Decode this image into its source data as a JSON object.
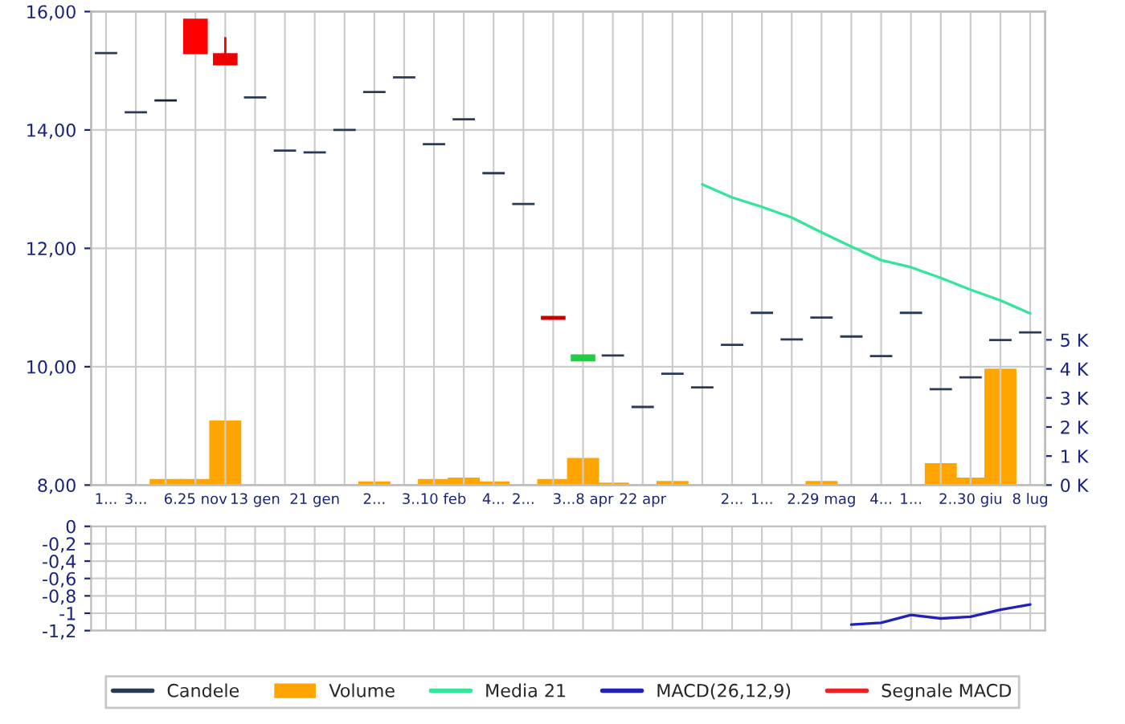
{
  "chart_data": [
    {
      "type": "candlestick",
      "categories": [
        "1...",
        "3...",
        null,
        "6.25 nov",
        null,
        "13 gen",
        null,
        "21 gen",
        null,
        "2...",
        null,
        "3..10 feb",
        null,
        "4...",
        "2...",
        null,
        "3...8 apr",
        null,
        "22 apr",
        null,
        null,
        "2...",
        "1...",
        null,
        "2.29 mag",
        null,
        "4...",
        "1...",
        null,
        "2..30 giu",
        null,
        "8 lug"
      ],
      "series": [
        {
          "name": "Candele",
          "type": "candlestick",
          "color": "#2b3a55",
          "ohlc": [
            [
              15.3,
              15.3,
              15.3,
              15.3
            ],
            [
              14.3,
              14.3,
              14.3,
              14.3
            ],
            [
              14.5,
              14.5,
              14.5,
              14.5
            ],
            [
              15.86,
              15.86,
              15.3,
              15.3
            ],
            [
              15.28,
              15.57,
              15.11,
              15.11
            ],
            [
              14.55,
              14.55,
              14.55,
              14.55
            ],
            [
              13.65,
              13.65,
              13.65,
              13.65
            ],
            [
              13.62,
              13.62,
              13.62,
              13.62
            ],
            [
              14.0,
              14.0,
              14.0,
              14.0
            ],
            [
              14.64,
              14.64,
              14.64,
              14.64
            ],
            [
              14.89,
              14.89,
              14.89,
              14.89
            ],
            [
              13.76,
              13.76,
              13.76,
              13.76
            ],
            [
              14.18,
              14.18,
              14.18,
              14.18
            ],
            [
              13.27,
              13.27,
              13.27,
              13.27
            ],
            [
              12.75,
              12.75,
              12.75,
              12.75
            ],
            [
              10.84,
              10.84,
              10.81,
              10.81
            ],
            [
              10.11,
              10.19,
              10.11,
              10.19
            ],
            [
              10.19,
              10.19,
              10.19,
              10.19
            ],
            [
              9.32,
              9.32,
              9.32,
              9.32
            ],
            [
              9.88,
              9.88,
              9.88,
              9.88
            ],
            [
              9.65,
              9.65,
              9.65,
              9.65
            ],
            [
              10.37,
              10.37,
              10.37,
              10.37
            ],
            [
              10.91,
              10.91,
              10.91,
              10.91
            ],
            [
              10.46,
              10.46,
              10.46,
              10.46
            ],
            [
              10.83,
              10.83,
              10.83,
              10.83
            ],
            [
              10.51,
              10.51,
              10.51,
              10.51
            ],
            [
              10.18,
              10.18,
              10.18,
              10.18
            ],
            [
              10.91,
              10.91,
              10.91,
              10.91
            ],
            [
              9.62,
              9.62,
              9.62,
              9.62
            ],
            [
              9.82,
              9.82,
              9.82,
              9.82
            ],
            [
              10.45,
              10.45,
              10.45,
              10.45
            ],
            [
              10.58,
              10.58,
              10.58,
              10.58
            ]
          ],
          "colors": [
            "#2b3a55",
            "#2b3a55",
            "#1a2233",
            "#ff0000",
            "#ee0000",
            "#2b3a55",
            "#2b3a55",
            "#2b3a55",
            "#2b3a55",
            "#2b3a55",
            "#2b3a55",
            "#2b3a55",
            "#2b3a55",
            "#2b3a55",
            "#2b3a55",
            "#cc0000",
            "#22cc44",
            "#2b3a55",
            "#2b3a55",
            "#2b3a55",
            "#2b3a55",
            "#2b3a55",
            "#2b3a55",
            "#2b3a55",
            "#2b3a55",
            "#2b3a55",
            "#2b3a55",
            "#2b3a55",
            "#2b3a55",
            "#2b3a55",
            "#2b3a55",
            "#2b3a55"
          ]
        },
        {
          "name": "Volume",
          "type": "bar",
          "axis": "y2",
          "color": "#ffa500",
          "values": [
            0,
            0,
            0.17,
            0.17,
            2.19,
            0,
            0,
            0,
            0,
            0.09,
            0,
            0.17,
            0.22,
            0.09,
            0,
            0.17,
            0.9,
            0.05,
            0,
            0.1,
            0,
            0,
            0,
            0,
            0.1,
            0,
            0,
            0,
            0.72,
            0.22,
            3.97,
            0
          ]
        },
        {
          "name": "Media 21",
          "type": "line",
          "color": "#33e699",
          "values": [
            null,
            null,
            null,
            null,
            null,
            null,
            null,
            null,
            null,
            null,
            null,
            null,
            null,
            null,
            null,
            null,
            null,
            null,
            null,
            null,
            13.08,
            12.86,
            12.7,
            12.52,
            12.27,
            12.03,
            11.8,
            11.68,
            11.5,
            11.3,
            11.12,
            10.9
          ]
        }
      ],
      "ylim": [
        8,
        16
      ],
      "yticks": [
        {
          "value": 8,
          "label": "8,00"
        },
        {
          "value": 10,
          "label": "10,00"
        },
        {
          "value": 12,
          "label": "12,00"
        },
        {
          "value": 14,
          "label": "14,00"
        },
        {
          "value": 16,
          "label": "16,00"
        }
      ],
      "y2lim": [
        0,
        16.3
      ],
      "y2ticks": [
        {
          "value": 0,
          "label": "0 K"
        },
        {
          "value": 1,
          "label": "1 K"
        },
        {
          "value": 2,
          "label": "2 K"
        },
        {
          "value": 3,
          "label": "3 K"
        },
        {
          "value": 4,
          "label": "4 K"
        },
        {
          "value": 5,
          "label": "5 K"
        }
      ],
      "grid": true,
      "legend": "bottom"
    },
    {
      "type": "line",
      "categories": [
        null,
        null,
        null,
        null,
        null,
        null,
        null,
        null,
        null,
        null,
        null,
        null,
        null,
        null,
        null,
        null,
        null,
        null,
        null,
        null,
        null,
        null,
        null,
        null,
        null,
        null,
        null,
        null,
        null,
        null,
        null,
        null
      ],
      "series": [
        {
          "name": "MACD(26,12,9)",
          "color": "#2222bb",
          "values": [
            null,
            null,
            null,
            null,
            null,
            null,
            null,
            null,
            null,
            null,
            null,
            null,
            null,
            null,
            null,
            null,
            null,
            null,
            null,
            null,
            null,
            null,
            null,
            null,
            null,
            -1.13,
            -1.11,
            -1.02,
            -1.06,
            -1.04,
            -0.96,
            -0.9
          ]
        },
        {
          "name": "Segnale MACD",
          "color": "#ee2222",
          "values": [
            null,
            null,
            null,
            null,
            null,
            null,
            null,
            null,
            null,
            null,
            null,
            null,
            null,
            null,
            null,
            null,
            null,
            null,
            null,
            null,
            null,
            null,
            null,
            null,
            null,
            null,
            null,
            null,
            null,
            null,
            null,
            null
          ]
        }
      ],
      "ylim": [
        -1.2,
        0
      ],
      "yticks": [
        {
          "value": 0,
          "label": "0"
        },
        {
          "value": -0.2,
          "label": "-0,2"
        },
        {
          "value": -0.4,
          "label": "-0,4"
        },
        {
          "value": -0.6,
          "label": "-0,6"
        },
        {
          "value": -0.8,
          "label": "-0,8"
        },
        {
          "value": -1,
          "label": "-1"
        },
        {
          "value": -1.2,
          "label": "-1,2"
        }
      ],
      "tick_labels": "y",
      "grid": true,
      "legend": "bottom"
    }
  ]
}
